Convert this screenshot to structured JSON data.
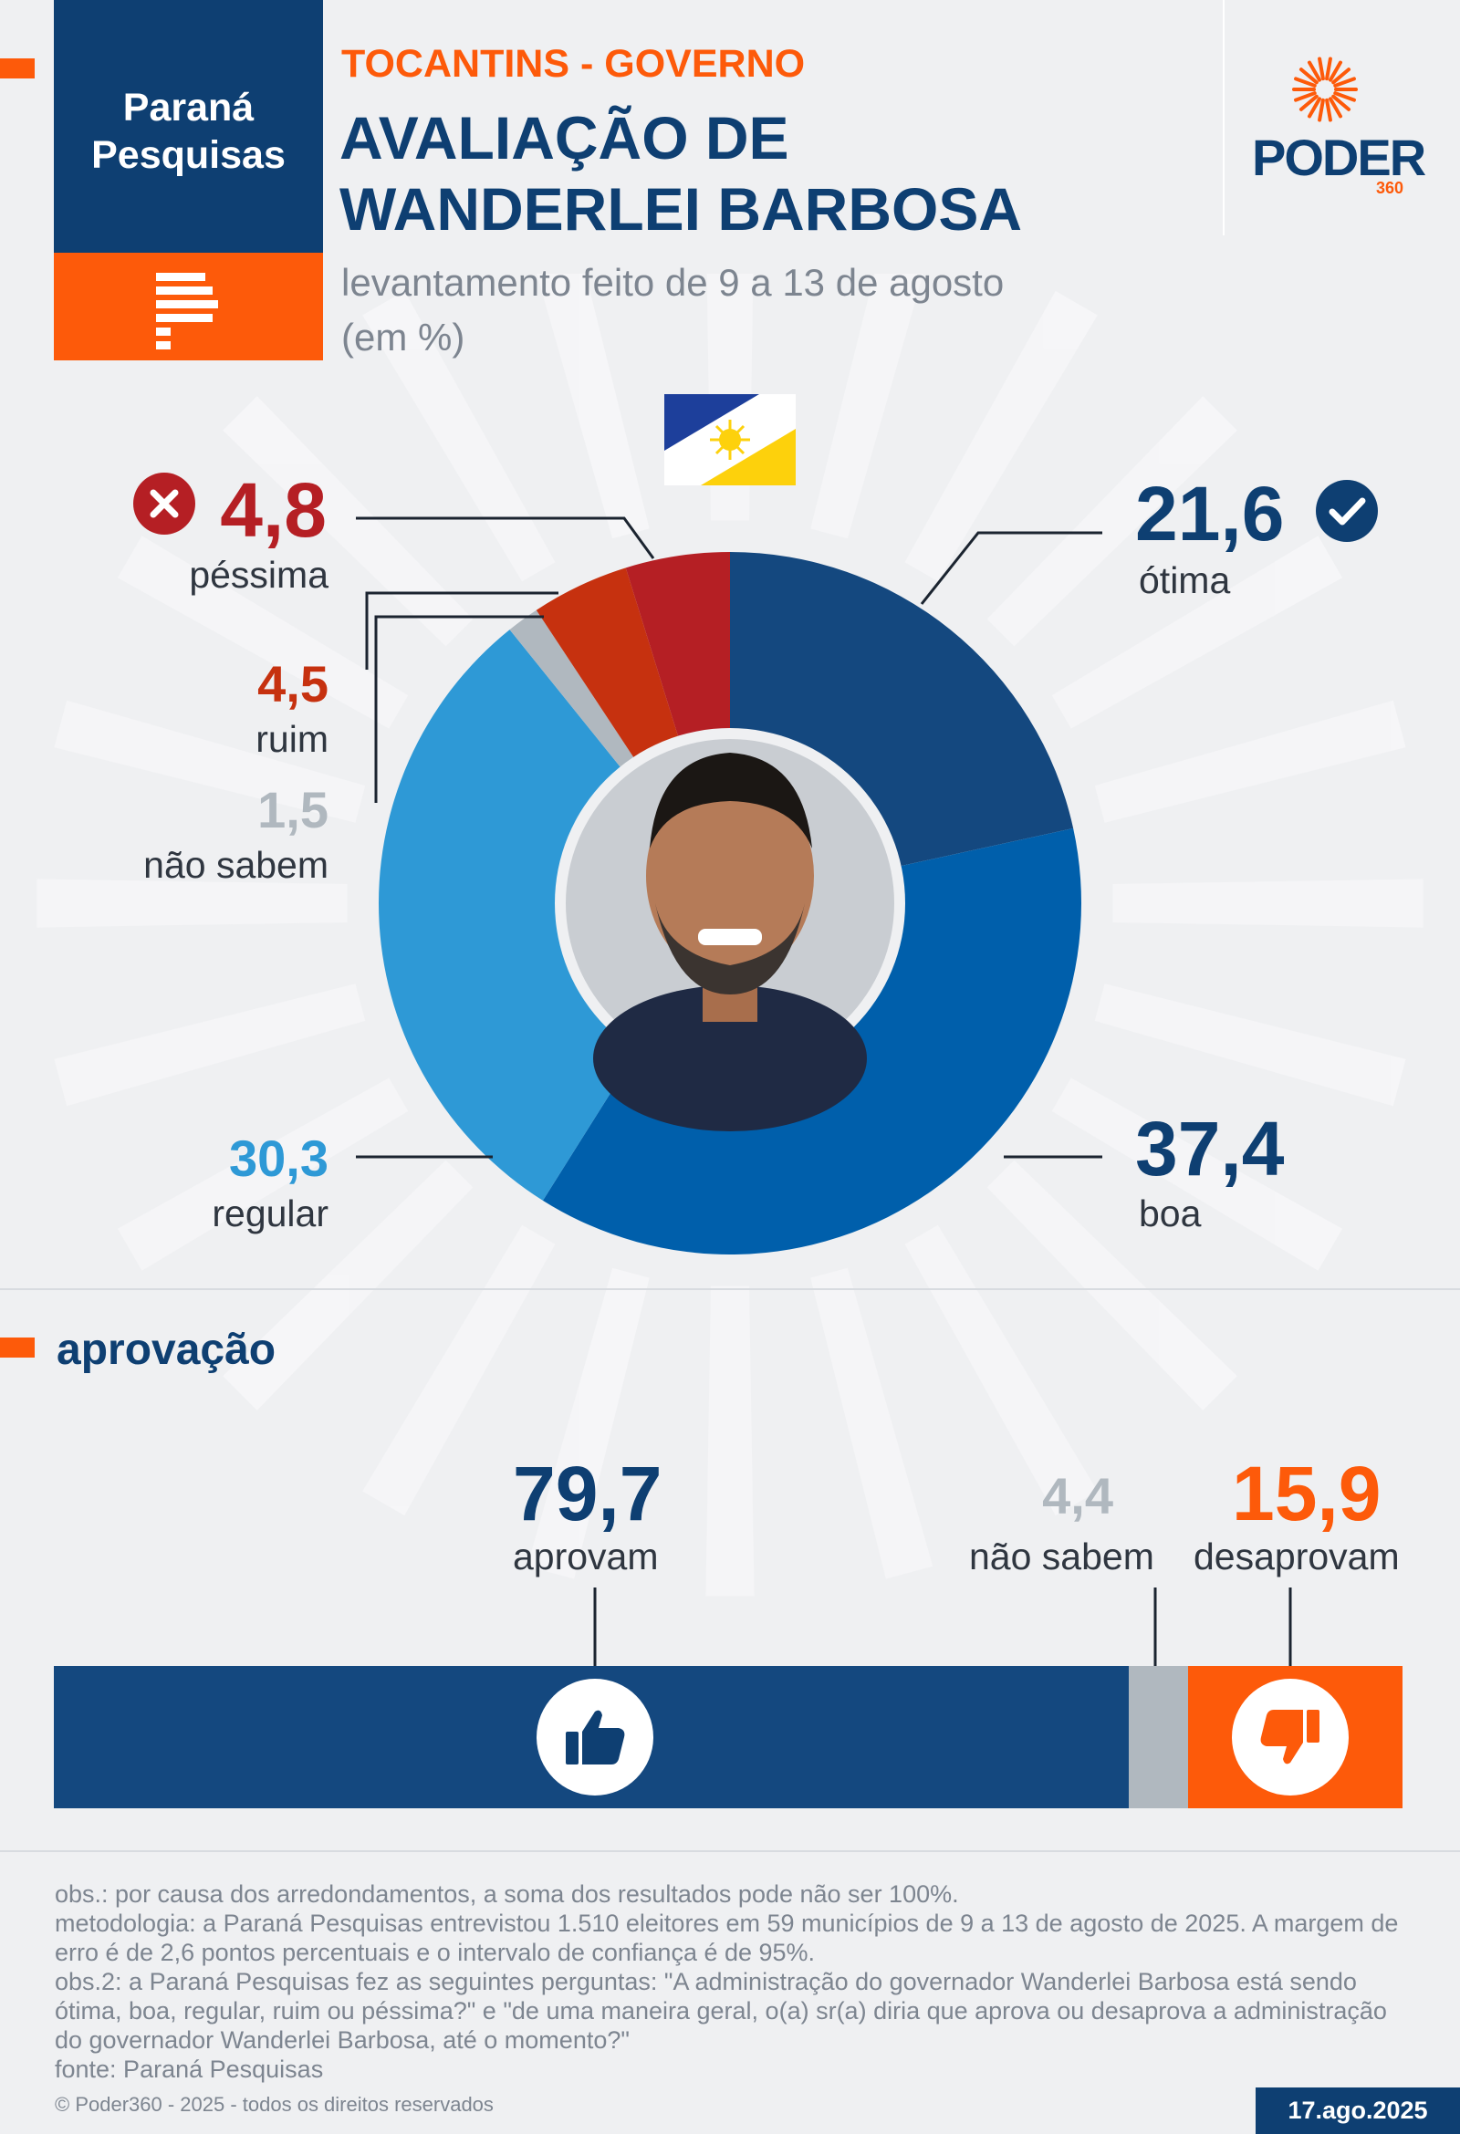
{
  "header": {
    "logo_line1": "Paraná",
    "logo_line2": "Pesquisas",
    "kicker": "TOCANTINS - GOVERNO",
    "title_line1": "AVALIAÇÃO DE",
    "title_line2": "WANDERLEI BARBOSA",
    "subtitle_line1": "levantamento feito de 9 a 13 de agosto",
    "subtitle_line2": "(em %)",
    "brand": "PODER",
    "brand_sub": "360"
  },
  "colors": {
    "navy": "#0e3f72",
    "orange": "#fd5a0a",
    "otima": "#14487f",
    "boa": "#005fab",
    "regular": "#2e99d6",
    "nao_sabem": "#b0b8bf",
    "ruim": "#c6310f",
    "pessima": "#b51f24"
  },
  "chart_data": [
    {
      "type": "pie",
      "categories": [
        "ótima",
        "boa",
        "regular",
        "não sabem",
        "ruim",
        "péssima"
      ],
      "values": [
        21.6,
        37.4,
        30.3,
        1.5,
        4.5,
        4.8
      ],
      "value_labels": [
        "21,6",
        "37,4",
        "30,3",
        "1,5",
        "4,5",
        "4,8"
      ]
    },
    {
      "type": "bar",
      "title": "aprovação",
      "categories": [
        "aprovam",
        "não sabem",
        "desaprovam"
      ],
      "values": [
        79.7,
        4.4,
        15.9
      ],
      "value_labels": [
        "79,7",
        "4,4",
        "15,9"
      ]
    }
  ],
  "footer": {
    "line1": "obs.: por causa dos arredondamentos, a soma dos resultados pode não ser 100%.",
    "line2": "metodologia: a Paraná Pesquisas entrevistou 1.510 eleitores em 59 municípios de 9 a 13 de agosto de 2025. A margem de erro é de 2,6 pontos percentuais e o intervalo de confiança é de 95%.",
    "line3": "obs.2: a Paraná Pesquisas fez as seguintes perguntas: \"A administração do governador Wanderlei Barbosa está sendo ótima, boa, regular, ruim ou péssima?\" e \"de uma maneira geral, o(a) sr(a) diria que aprova ou desaprova a administração do governador Wanderlei Barbosa, até o momento?\"",
    "line4": "fonte: Paraná Pesquisas",
    "copyright": "© Poder360 - 2025 - todos os direitos reservados",
    "date": "17.ago.2025"
  }
}
